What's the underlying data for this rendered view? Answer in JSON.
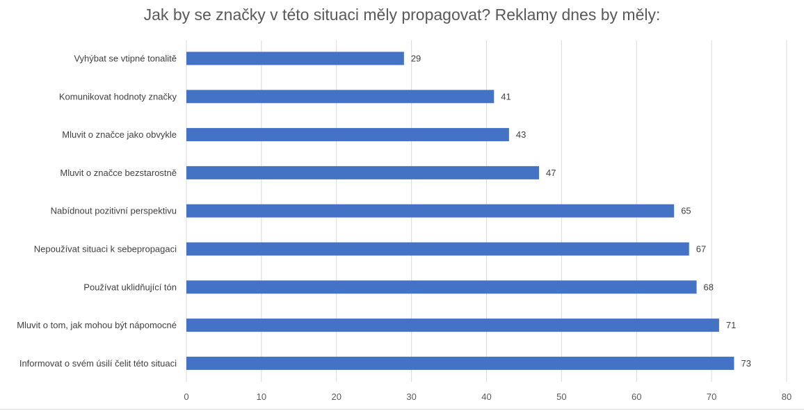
{
  "chart_data": {
    "type": "bar",
    "orientation": "horizontal",
    "title": "Jak by se značky v této situaci měly propagovat? Reklamy dnes by měly:",
    "categories": [
      "Vyhýbat se vtipné tonalitě",
      "Komunikovat hodnoty značky",
      "Mluvit o značce jako obvykle",
      "Mluvit o značce bezstarostně",
      "Nabídnout pozitivní perspektivu",
      "Nepoužívat situaci k sebepropagaci",
      "Používat uklidňující tón",
      "Mluvit o tom, jak mohou být nápomocné",
      "Informovat o svém úsilí čelit této situaci"
    ],
    "values": [
      29,
      41,
      43,
      47,
      65,
      67,
      68,
      71,
      73
    ],
    "xlim": [
      0,
      80
    ],
    "xticks": [
      0,
      10,
      20,
      30,
      40,
      50,
      60,
      70,
      80
    ],
    "grid": true,
    "legend": "none",
    "bar_color": "#4472c4",
    "grid_color": "#d9d9d9"
  }
}
